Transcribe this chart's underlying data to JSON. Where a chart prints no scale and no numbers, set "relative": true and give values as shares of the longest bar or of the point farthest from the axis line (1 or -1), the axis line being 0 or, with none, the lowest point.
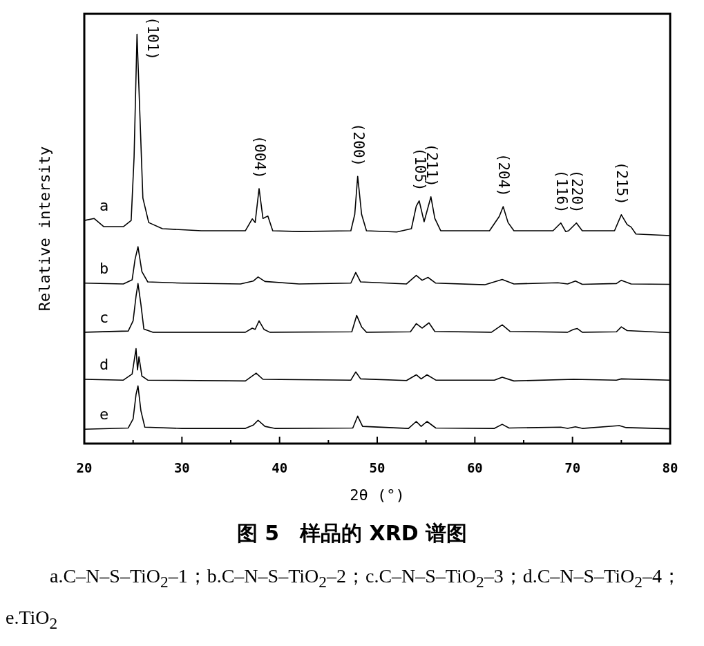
{
  "chart_data": {
    "type": "line",
    "title": "图 5　样品的 XRD 谱图",
    "xlabel": "2θ (°)",
    "ylabel": "Relative intersity",
    "relative": true,
    "xlim": [
      20,
      80
    ],
    "xticks": [
      20,
      {
        "value": 25,
        "label": null
      },
      30,
      {
        "value": 35,
        "label": null
      },
      40,
      {
        "value": 45,
        "label": null
      },
      50,
      {
        "value": 55,
        "label": null
      },
      60,
      {
        "value": 65,
        "label": null
      },
      70,
      {
        "value": 75,
        "label": null
      },
      80
    ],
    "series": [
      {
        "name": "a",
        "color": "#000000",
        "x": [
          20,
          21,
          22,
          24,
          24.8,
          25.1,
          25.4,
          25.7,
          26.0,
          26.6,
          28,
          32,
          36.5,
          37.2,
          37.5,
          37.9,
          38.3,
          38.8,
          39.3,
          42,
          47.3,
          47.7,
          48.0,
          48.4,
          48.9,
          52,
          53.5,
          54.0,
          54.3,
          54.8,
          55.5,
          55.9,
          56.5,
          61.5,
          62.5,
          62.9,
          63.4,
          64,
          68,
          68.8,
          69.3,
          69.6,
          70.4,
          71,
          74.3,
          75.0,
          75.6,
          76.0,
          76.5,
          80
        ],
        "values": [
          0.545,
          0.55,
          0.53,
          0.53,
          0.545,
          0.7,
          1.0,
          0.8,
          0.6,
          0.54,
          0.525,
          0.52,
          0.52,
          0.549,
          0.54,
          0.623,
          0.55,
          0.556,
          0.52,
          0.518,
          0.52,
          0.56,
          0.653,
          0.56,
          0.52,
          0.517,
          0.525,
          0.58,
          0.593,
          0.542,
          0.603,
          0.55,
          0.52,
          0.52,
          0.555,
          0.579,
          0.54,
          0.52,
          0.52,
          0.539,
          0.518,
          0.52,
          0.539,
          0.52,
          0.52,
          0.559,
          0.535,
          0.529,
          0.512,
          0.508
        ]
      },
      {
        "name": "b",
        "color": "#000000",
        "x": [
          20,
          24,
          24.9,
          25.2,
          25.5,
          25.9,
          26.5,
          30,
          36,
          37.3,
          37.8,
          38.5,
          42,
          47.3,
          47.8,
          48.3,
          53,
          54.0,
          54.6,
          55.2,
          56,
          61,
          62.8,
          64,
          68.5,
          69.5,
          70.3,
          71,
          74.5,
          75.0,
          76,
          80
        ],
        "values": [
          0.392,
          0.39,
          0.4,
          0.45,
          0.481,
          0.42,
          0.395,
          0.392,
          0.39,
          0.397,
          0.407,
          0.396,
          0.39,
          0.392,
          0.418,
          0.395,
          0.39,
          0.411,
          0.399,
          0.406,
          0.392,
          0.388,
          0.401,
          0.39,
          0.393,
          0.39,
          0.397,
          0.389,
          0.391,
          0.399,
          0.39,
          0.389
        ]
      },
      {
        "name": "c",
        "color": "#000000",
        "x": [
          20,
          24.5,
          25.0,
          25.3,
          25.5,
          25.8,
          26.1,
          27,
          36.5,
          37.2,
          37.5,
          37.9,
          38.4,
          39,
          47.4,
          47.9,
          48.4,
          48.9,
          53.4,
          54.0,
          54.6,
          55.3,
          55.9,
          61.7,
          62.8,
          63.6,
          69.5,
          70.1,
          70.5,
          71,
          74.5,
          75.0,
          75.6,
          80
        ],
        "values": [
          0.272,
          0.275,
          0.3,
          0.36,
          0.391,
          0.34,
          0.28,
          0.272,
          0.272,
          0.282,
          0.279,
          0.3,
          0.279,
          0.272,
          0.273,
          0.313,
          0.285,
          0.272,
          0.273,
          0.293,
          0.282,
          0.295,
          0.274,
          0.272,
          0.29,
          0.274,
          0.272,
          0.279,
          0.281,
          0.272,
          0.273,
          0.285,
          0.276,
          0.271
        ]
      },
      {
        "name": "d",
        "color": "#000000",
        "x": [
          20,
          24,
          24.9,
          25.3,
          25.45,
          25.6,
          25.9,
          26.5,
          36.5,
          37.6,
          38.3,
          47.3,
          47.8,
          48.3,
          53,
          54.0,
          54.5,
          55.1,
          56,
          62,
          62.8,
          64,
          70.1,
          74.5,
          75.0,
          80
        ],
        "values": [
          0.157,
          0.155,
          0.17,
          0.232,
          0.18,
          0.212,
          0.165,
          0.155,
          0.153,
          0.172,
          0.157,
          0.155,
          0.175,
          0.158,
          0.154,
          0.168,
          0.158,
          0.168,
          0.155,
          0.155,
          0.162,
          0.153,
          0.157,
          0.155,
          0.158,
          0.155
        ]
      },
      {
        "name": "e",
        "color": "#000000",
        "x": [
          20,
          24.5,
          25.0,
          25.3,
          25.5,
          25.8,
          26.2,
          30,
          36.5,
          37.3,
          37.8,
          38.5,
          39.5,
          47.5,
          48.0,
          48.5,
          53.2,
          54.0,
          54.5,
          55.1,
          56,
          62,
          62.8,
          63.5,
          68.8,
          69.5,
          70.3,
          71,
          74.8,
          75.5,
          80
        ],
        "values": [
          0.035,
          0.038,
          0.06,
          0.12,
          0.141,
          0.08,
          0.04,
          0.037,
          0.037,
          0.045,
          0.057,
          0.042,
          0.037,
          0.038,
          0.067,
          0.042,
          0.037,
          0.054,
          0.042,
          0.054,
          0.038,
          0.037,
          0.047,
          0.038,
          0.04,
          0.037,
          0.041,
          0.037,
          0.044,
          0.039,
          0.036
        ]
      }
    ],
    "annotations": [
      {
        "text": "(101)",
        "x": 25.4,
        "y": 1.0
      },
      {
        "text": "(004)",
        "x": 37.9,
        "y": 0.623
      },
      {
        "text": "(200)",
        "x": 48.0,
        "y": 0.653
      },
      {
        "text": "(105)",
        "x": 54.3,
        "y": 0.593
      },
      {
        "text": "(211)",
        "x": 55.5,
        "y": 0.603
      },
      {
        "text": "(204)",
        "x": 62.9,
        "y": 0.579
      },
      {
        "text": "(116)",
        "x": 68.8,
        "y": 0.539
      },
      {
        "text": "(220)",
        "x": 70.4,
        "y": 0.539
      },
      {
        "text": "(215)",
        "x": 75.0,
        "y": 0.559
      },
      "a.C–N–S–TiO$_{2}$–1；b.C–N–S–TiO$_{2}$–2；c.C–N–S–TiO$_{2}$–3；d.C–N–S–TiO$_{2}$–4；e.TiO$_{2}$"
    ]
  }
}
